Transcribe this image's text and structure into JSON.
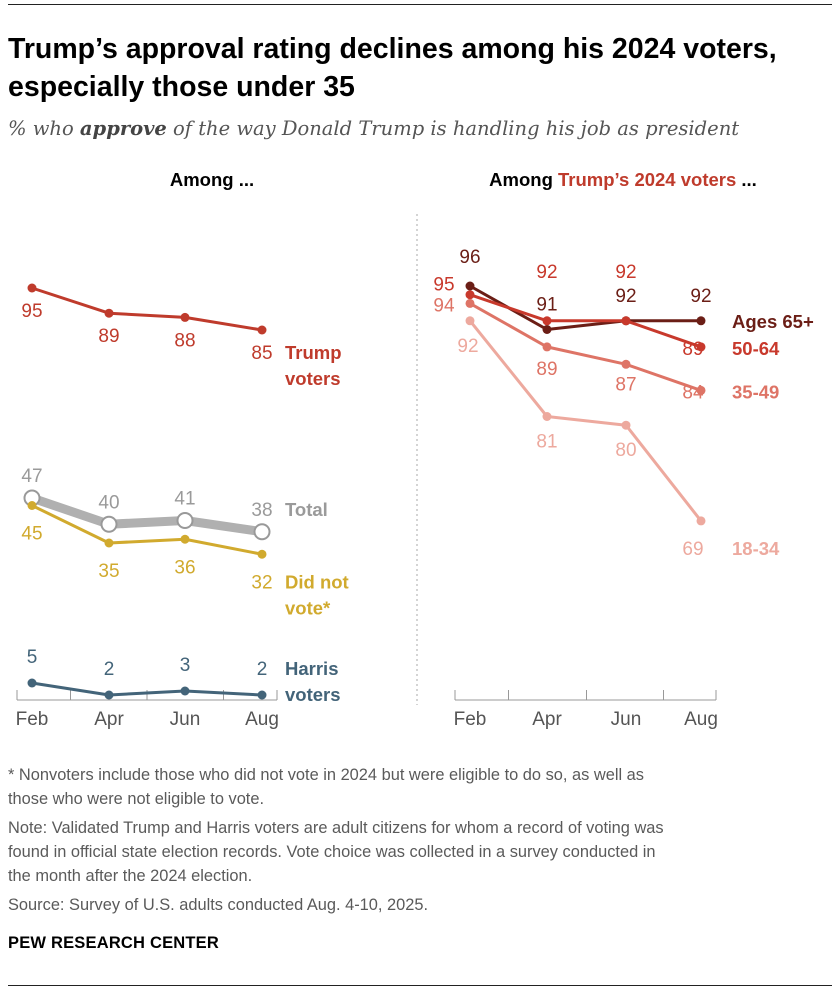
{
  "header": {
    "title": "Trump’s approval rating declines among his 2024 voters, especially those under 35",
    "subtitle_pre": "% who ",
    "subtitle_em": "approve",
    "subtitle_post": " of the way Donald Trump is handling his job as president"
  },
  "colors": {
    "trump": "#bf3b2c",
    "total": "#b0b0b0",
    "did_not_vote": "#d1aa2e",
    "harris": "#436479",
    "ages_65_plus": "#6b1e16",
    "ages_50_64": "#c8392c",
    "ages_35_49": "#de7466",
    "ages_18_34": "#eda99e"
  },
  "chart_data": [
    {
      "type": "line",
      "title_pre": "Among ...",
      "title_highlight": "",
      "title_post": "",
      "x": [
        "Feb",
        "Apr",
        "Jun",
        "Aug"
      ],
      "series": [
        {
          "key": "trump",
          "name": "Trump voters",
          "label_lines": [
            "Trump",
            "voters"
          ],
          "values": [
            95,
            89,
            88,
            85
          ],
          "color": "#bf3b2c"
        },
        {
          "key": "total",
          "name": "Total",
          "label_lines": [
            "Total"
          ],
          "values": [
            47,
            40,
            41,
            38
          ],
          "color": "#b0b0b0"
        },
        {
          "key": "dnv",
          "name": "Did not vote*",
          "label_lines": [
            "Did not",
            "vote*"
          ],
          "values": [
            45,
            35,
            36,
            32
          ],
          "color": "#d1aa2e"
        },
        {
          "key": "harris",
          "name": "Harris voters",
          "label_lines": [
            "Harris",
            "voters"
          ],
          "values": [
            5,
            2,
            3,
            2
          ],
          "color": "#436479"
        }
      ]
    },
    {
      "type": "line",
      "title_pre": "Among ",
      "title_highlight": "Trump’s 2024 voters",
      "title_post": " ...",
      "x": [
        "Feb",
        "Apr",
        "Jun",
        "Aug"
      ],
      "series": [
        {
          "key": "a65",
          "name": "Ages 65+",
          "label_lines": [
            "Ages 65+"
          ],
          "values": [
            96,
            91,
            92,
            92
          ],
          "color": "#6b1e16"
        },
        {
          "key": "a50",
          "name": "50-64",
          "label_lines": [
            "50-64"
          ],
          "values": [
            95,
            92,
            92,
            89
          ],
          "color": "#c8392c"
        },
        {
          "key": "a35",
          "name": "35-49",
          "label_lines": [
            "35-49"
          ],
          "values": [
            94,
            89,
            87,
            84
          ],
          "color": "#de7466"
        },
        {
          "key": "a18",
          "name": "18-34",
          "label_lines": [
            "18-34"
          ],
          "values": [
            92,
            81,
            80,
            69
          ],
          "color": "#eda99e"
        }
      ]
    }
  ],
  "footnotes": {
    "asterisk_1": "* Nonvoters include those who did not vote in 2024 but were eligible to do so, as well as",
    "asterisk_2": "those who were not eligible to vote.",
    "note_1": "Note: Validated Trump and Harris voters are adult citizens for whom a record of voting was",
    "note_2": "found in official state election records. Vote choice was collected in a survey conducted in",
    "note_3": "the month after the 2024 election.",
    "source": "Source: Survey of U.S. adults conducted Aug. 4-10, 2025.",
    "brand": "PEW RESEARCH CENTER"
  }
}
